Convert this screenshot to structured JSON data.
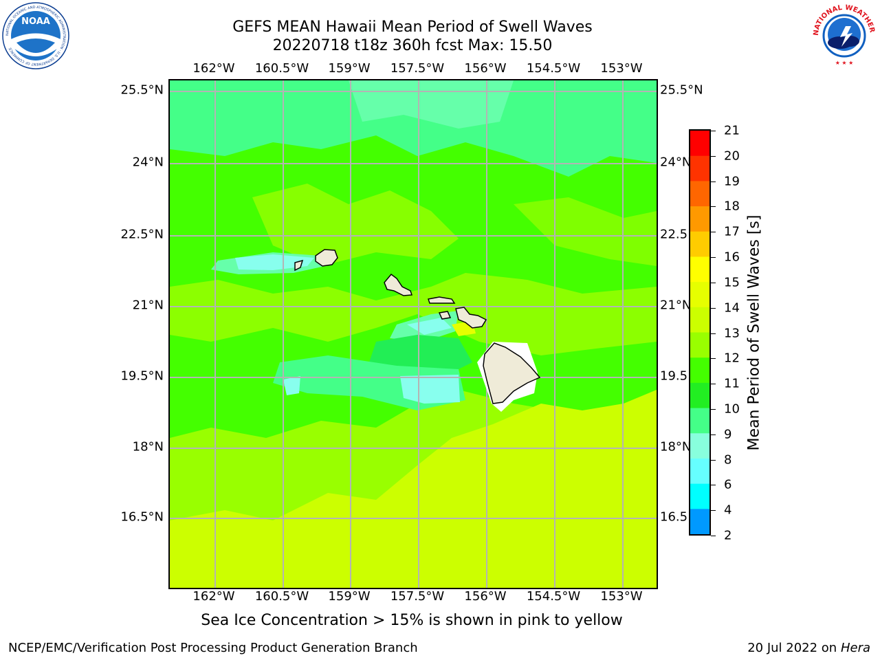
{
  "title": {
    "line1": "GEFS MEAN Hawaii Mean Period of Swell Waves",
    "line2": "20220718 t18z 360h fcst   Max: 15.50"
  },
  "map": {
    "lon_labels": [
      "162°W",
      "160.5°W",
      "159°W",
      "157.5°W",
      "156°W",
      "154.5°W",
      "153°W"
    ],
    "lat_labels_left": [
      "25.5°N",
      "24°N",
      "22.5°N",
      "21°N",
      "19.5°N",
      "18°N",
      "16.5°N"
    ],
    "lat_labels_right": [
      "25.5°N",
      "24°N",
      "22.5",
      "21°N",
      "19.5",
      "18°N",
      "16.5"
    ],
    "lon_range": [
      -163,
      -152.6
    ],
    "lat_range": [
      14.85,
      25.75
    ],
    "islands": [
      "Niihau",
      "Kauai",
      "Oahu",
      "Molokai",
      "Lanai",
      "Maui",
      "Hawaii"
    ],
    "colors": {
      "ocean_base": "#44ff00",
      "land": "#efebd8",
      "grid": "#b4b4b4"
    }
  },
  "colorbar": {
    "label": "Mean Period of Swell Waves [s]",
    "tick_labels": [
      "21",
      "20",
      "19",
      "18",
      "17",
      "16",
      "15",
      "14",
      "13",
      "12",
      "11",
      "10",
      "9",
      "8",
      "6",
      "4",
      "2"
    ],
    "colors": [
      "#ff0000",
      "#ff3300",
      "#ff6600",
      "#ff9900",
      "#ffcc00",
      "#ffff00",
      "#e6ff00",
      "#ccff00",
      "#99ff00",
      "#44ff00",
      "#22ee22",
      "#44ff88",
      "#88ffdd",
      "#66ffff",
      "#00ffff",
      "#0099ff",
      "#0000ff"
    ]
  },
  "logos": {
    "noaa_text": "NOAA",
    "noaa_ring_text": "NATIONAL OCEANIC AND ATMOSPHERIC ADMINISTRATION · U.S. DEPARTMENT OF COMMERCE",
    "nws_ring_text": "NATIONAL WEATHER SERVICE"
  },
  "note": "Sea Ice Concentration > 15% is shown in pink to yellow",
  "footer": {
    "left": "NCEP/EMC/Verification Post Processing Product Generation Branch",
    "right_prefix": "20 Jul 2022 on ",
    "right_host": "Hera"
  }
}
